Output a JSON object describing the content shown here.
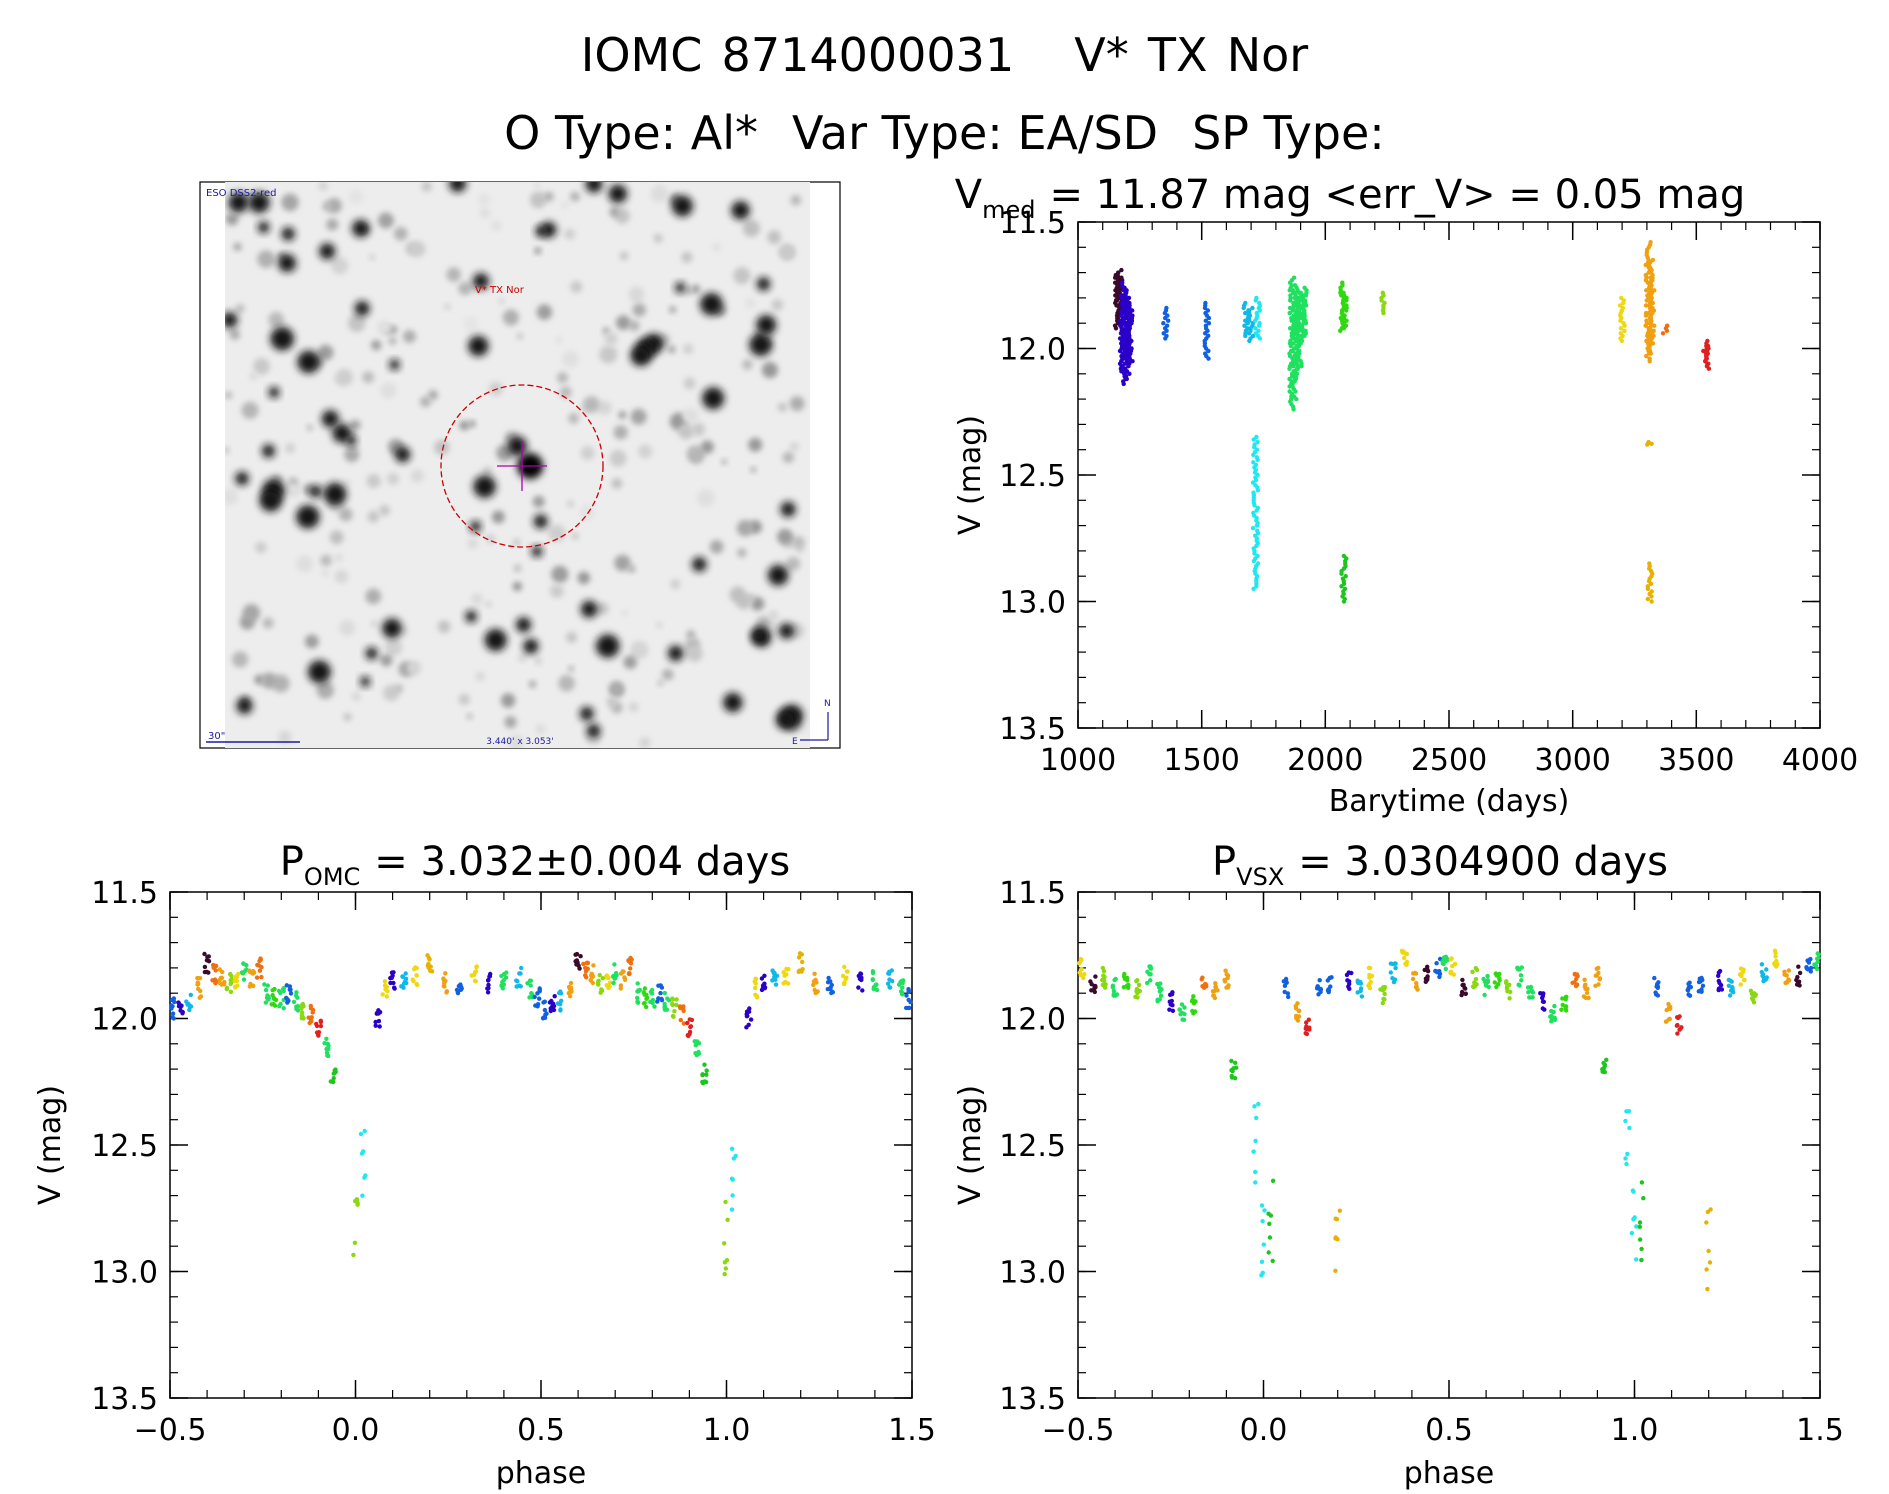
{
  "header": {
    "object_id": "IOMC 8714000031",
    "star_name": "V* TX Nor",
    "o_type_label": "O Type:",
    "o_type": "Al*",
    "var_type_label": "Var Type:",
    "var_type": "EA/SD",
    "sp_type_label": "SP Type:",
    "sp_type": ""
  },
  "finder": {
    "survey_label": "ESO DSS2-red",
    "target_label": "V* TX Nor",
    "scale_label": "30\"",
    "fov_label": "3.440' x 3.053'",
    "north_label": "N",
    "east_label": "E",
    "colors": {
      "circle": "#cc0000",
      "cross": "#b000b0",
      "labels": "#1a1aa0"
    }
  },
  "chart_data": [
    {
      "id": "lightcurve",
      "type": "scatter",
      "title_prefix": "V",
      "title_sub": "med",
      "title_rest": "= 11.87 mag <err_V> = 0.05 mag",
      "xlabel": "Barytime (days)",
      "ylabel": "V (mag)",
      "xlim": [
        1000,
        4000
      ],
      "ylim": [
        13.5,
        11.5
      ],
      "xticks": [
        1000,
        1500,
        2000,
        2500,
        3000,
        3500,
        4000
      ],
      "xtick_labels": [
        "1000",
        "1500",
        "2000",
        "2500",
        "3000",
        "3500",
        "4000"
      ],
      "yticks": [
        11.5,
        12.0,
        12.5,
        13.0,
        13.5
      ],
      "ytick_labels": [
        "11.5",
        "12.0",
        "12.5",
        "13.0",
        "13.5"
      ],
      "series": [
        {
          "name": "g1",
          "color": "#3a0a2a",
          "x": [
            1160,
            1165,
            1170
          ],
          "y_lo": [
            11.71,
            11.72,
            11.69
          ],
          "y_hi": [
            11.92,
            11.88,
            11.85
          ]
        },
        {
          "name": "g2",
          "color": "#2a00c8",
          "x": [
            1178,
            1185,
            1192,
            1198,
            1205,
            1212
          ],
          "y_lo": [
            11.79,
            11.74,
            11.8,
            11.77,
            11.82,
            11.85
          ],
          "y_hi": [
            12.1,
            12.14,
            12.05,
            12.12,
            12.03,
            12.06
          ]
        },
        {
          "name": "g3",
          "color": "#1060e0",
          "x": [
            1355,
            1520
          ],
          "y_lo": [
            11.84,
            11.82
          ],
          "y_hi": [
            11.96,
            12.04
          ]
        },
        {
          "name": "g4",
          "color": "#10b8e8",
          "x": [
            1680,
            1700
          ],
          "y_lo": [
            11.82,
            11.84
          ],
          "y_hi": [
            11.95,
            11.97
          ]
        },
        {
          "name": "g5",
          "color": "#20e8f0",
          "x": [
            1718,
            1726
          ],
          "y_lo": [
            12.35,
            11.8
          ],
          "y_hi": [
            12.95,
            11.96
          ]
        },
        {
          "name": "g6",
          "color": "#20e060",
          "x": [
            1865,
            1875,
            1885,
            1895,
            1905,
            1915
          ],
          "y_lo": [
            11.72,
            11.75,
            11.8,
            11.77,
            11.78,
            11.76
          ],
          "y_hi": [
            12.24,
            12.2,
            12.12,
            12.08,
            11.98,
            11.95
          ]
        },
        {
          "name": "g7",
          "color": "#30d810",
          "x": [
            2068,
            2078
          ],
          "y_lo": [
            11.74,
            11.78
          ],
          "y_hi": [
            11.93,
            11.92
          ]
        },
        {
          "name": "g8",
          "color": "#1cc61c",
          "x": [
            2075
          ],
          "y_lo": [
            12.82
          ],
          "y_hi": [
            13.0
          ]
        },
        {
          "name": "g9",
          "color": "#8ad810",
          "x": [
            2235
          ],
          "y_lo": [
            11.78
          ],
          "y_hi": [
            11.86
          ]
        },
        {
          "name": "g10",
          "color": "#f0d810",
          "x": [
            3200
          ],
          "y_lo": [
            11.8
          ],
          "y_hi": [
            11.97
          ]
        },
        {
          "name": "g11",
          "color": "#f0a010",
          "x": [
            3305,
            3315,
            3322
          ],
          "y_lo": [
            11.58,
            11.65,
            11.72
          ],
          "y_hi": [
            12.05,
            12.02,
            11.98
          ]
        },
        {
          "name": "g12",
          "color": "#e8b000",
          "x": [
            3312,
            3310
          ],
          "y_lo": [
            12.85,
            12.37
          ],
          "y_hi": [
            13.0,
            12.38
          ]
        },
        {
          "name": "g13",
          "color": "#f07010",
          "x": [
            3375
          ],
          "y_lo": [
            11.91
          ],
          "y_hi": [
            11.94
          ]
        },
        {
          "name": "g14",
          "color": "#e02020",
          "x": [
            3535,
            3545
          ],
          "y_lo": [
            11.97,
            11.99
          ],
          "y_hi": [
            12.06,
            12.08
          ]
        }
      ]
    },
    {
      "id": "phase_omc",
      "type": "scatter",
      "title_prefix": "P",
      "title_sub": "OMC",
      "title_rest": "= 3.032±0.004 days",
      "xlabel": "phase",
      "ylabel": "V (mag)",
      "xlim": [
        -0.5,
        1.5
      ],
      "ylim": [
        13.5,
        11.5
      ],
      "xticks": [
        -0.5,
        0.0,
        0.5,
        1.0,
        1.5
      ],
      "xtick_labels": [
        "−0.5",
        "0.0",
        "0.5",
        "1.0",
        "1.5"
      ],
      "yticks": [
        11.5,
        12.0,
        12.5,
        13.0,
        13.5
      ],
      "ytick_labels": [
        "11.5",
        "12.0",
        "12.5",
        "13.0",
        "13.5"
      ],
      "base_phase": [
        -0.49,
        -0.47,
        -0.45,
        -0.42,
        -0.4,
        -0.38,
        -0.36,
        -0.34,
        -0.32,
        -0.3,
        -0.28,
        -0.26,
        -0.24,
        -0.22,
        -0.2,
        -0.18,
        -0.16,
        -0.14,
        -0.12,
        -0.1,
        -0.08,
        -0.06,
        0.0,
        0.02,
        0.06,
        0.08,
        0.1,
        0.13,
        0.16,
        0.2,
        0.24,
        0.28,
        0.32,
        0.36,
        0.4,
        0.44,
        0.47,
        0.49
      ],
      "base_mag": [
        11.96,
        11.94,
        11.93,
        11.88,
        11.78,
        11.82,
        11.83,
        11.86,
        11.84,
        11.82,
        11.85,
        11.8,
        11.9,
        11.92,
        11.92,
        11.9,
        11.93,
        11.96,
        11.98,
        12.03,
        12.12,
        12.22,
        12.85,
        12.6,
        12.0,
        11.88,
        11.85,
        11.84,
        11.83,
        11.78,
        11.86,
        11.87,
        11.83,
        11.86,
        11.85,
        11.84,
        11.88,
        11.92
      ],
      "base_color": [
        "#1060e0",
        "#2a00c8",
        "#10b8e8",
        "#f0a010",
        "#3a0a2a",
        "#f07010",
        "#f0a010",
        "#8ad810",
        "#f0d810",
        "#20e060",
        "#f0a010",
        "#f07010",
        "#20e060",
        "#30d810",
        "#20e060",
        "#1060e0",
        "#20e060",
        "#8ad810",
        "#f07010",
        "#e02020",
        "#20e060",
        "#1cc61c",
        "#8ad810",
        "#20e8f0",
        "#2a00c8",
        "#f0d810",
        "#2a00c8",
        "#10b8e8",
        "#f0d810",
        "#e8b000",
        "#f0a010",
        "#1060e0",
        "#f0d810",
        "#2a00c8",
        "#20e060",
        "#10b8e8",
        "#20e060",
        "#1060e0"
      ]
    },
    {
      "id": "phase_vsx",
      "type": "scatter",
      "title_prefix": "P",
      "title_sub": "VSX",
      "title_rest": "= 3.0304900 days",
      "xlabel": "phase",
      "ylabel": "V (mag)",
      "xlim": [
        -0.5,
        1.5
      ],
      "ylim": [
        13.5,
        11.5
      ],
      "xticks": [
        -0.5,
        0.0,
        0.5,
        1.0,
        1.5
      ],
      "xtick_labels": [
        "−0.5",
        "0.0",
        "0.5",
        "1.0",
        "1.5"
      ],
      "yticks": [
        11.5,
        12.0,
        12.5,
        13.0,
        13.5
      ],
      "ytick_labels": [
        "11.5",
        "12.0",
        "12.5",
        "13.0",
        "13.5"
      ],
      "base_phase": [
        -0.49,
        -0.46,
        -0.43,
        -0.4,
        -0.37,
        -0.34,
        -0.31,
        -0.28,
        -0.25,
        -0.22,
        -0.19,
        -0.16,
        -0.13,
        -0.1,
        -0.08,
        -0.02,
        0.0,
        0.02,
        0.06,
        0.09,
        0.12,
        0.15,
        0.18,
        0.2,
        0.23,
        0.26,
        0.29,
        0.32,
        0.35,
        0.38,
        0.41,
        0.44,
        0.47,
        0.49
      ],
      "base_mag": [
        11.8,
        11.87,
        11.84,
        11.87,
        11.86,
        11.88,
        11.83,
        11.9,
        11.93,
        11.98,
        11.95,
        11.86,
        11.88,
        11.84,
        12.2,
        12.5,
        12.85,
        12.8,
        11.88,
        11.98,
        12.03,
        11.88,
        11.86,
        12.9,
        11.85,
        11.88,
        11.84,
        11.9,
        11.82,
        11.76,
        11.85,
        11.83,
        11.8,
        11.77
      ],
      "base_color": [
        "#f0d810",
        "#3a0a2a",
        "#8ad810",
        "#20e060",
        "#30d810",
        "#8ad810",
        "#20e060",
        "#20e060",
        "#2a00c8",
        "#20e060",
        "#30d810",
        "#f07010",
        "#f0a010",
        "#f0a010",
        "#1cc61c",
        "#20e8f0",
        "#20e8f0",
        "#1cc61c",
        "#1060e0",
        "#f0a010",
        "#e02020",
        "#1060e0",
        "#1060e0",
        "#e8b000",
        "#2a00c8",
        "#10b8e8",
        "#f0d810",
        "#8ad810",
        "#10b8e8",
        "#f0d810",
        "#f0a010",
        "#3a0a2a",
        "#1060e0",
        "#20e060"
      ]
    }
  ]
}
